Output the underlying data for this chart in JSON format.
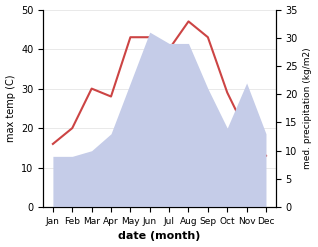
{
  "months": [
    "Jan",
    "Feb",
    "Mar",
    "Apr",
    "May",
    "Jun",
    "Jul",
    "Aug",
    "Sep",
    "Oct",
    "Nov",
    "Dec"
  ],
  "x": [
    1,
    2,
    3,
    4,
    5,
    6,
    7,
    8,
    9,
    10,
    11,
    12
  ],
  "temperature": [
    16.0,
    20.0,
    30.0,
    28.0,
    43.0,
    43.0,
    40.0,
    47.0,
    43.0,
    29.0,
    19.0,
    13.0
  ],
  "precipitation": [
    9.0,
    9.0,
    10.0,
    13.0,
    22.0,
    31.0,
    29.0,
    29.0,
    21.0,
    14.0,
    22.0,
    13.0
  ],
  "temp_ylim": [
    0,
    50
  ],
  "precip_ylim": [
    0,
    35
  ],
  "temp_color": "#cc4444",
  "precip_fill_color": "#c5cce8",
  "ylabel_left": "max temp (C)",
  "ylabel_right": "med. precipitation (kg/m2)",
  "xlabel": "date (month)",
  "left_ticks": [
    0,
    10,
    20,
    30,
    40,
    50
  ],
  "right_ticks": [
    0,
    5,
    10,
    15,
    20,
    25,
    30,
    35
  ]
}
